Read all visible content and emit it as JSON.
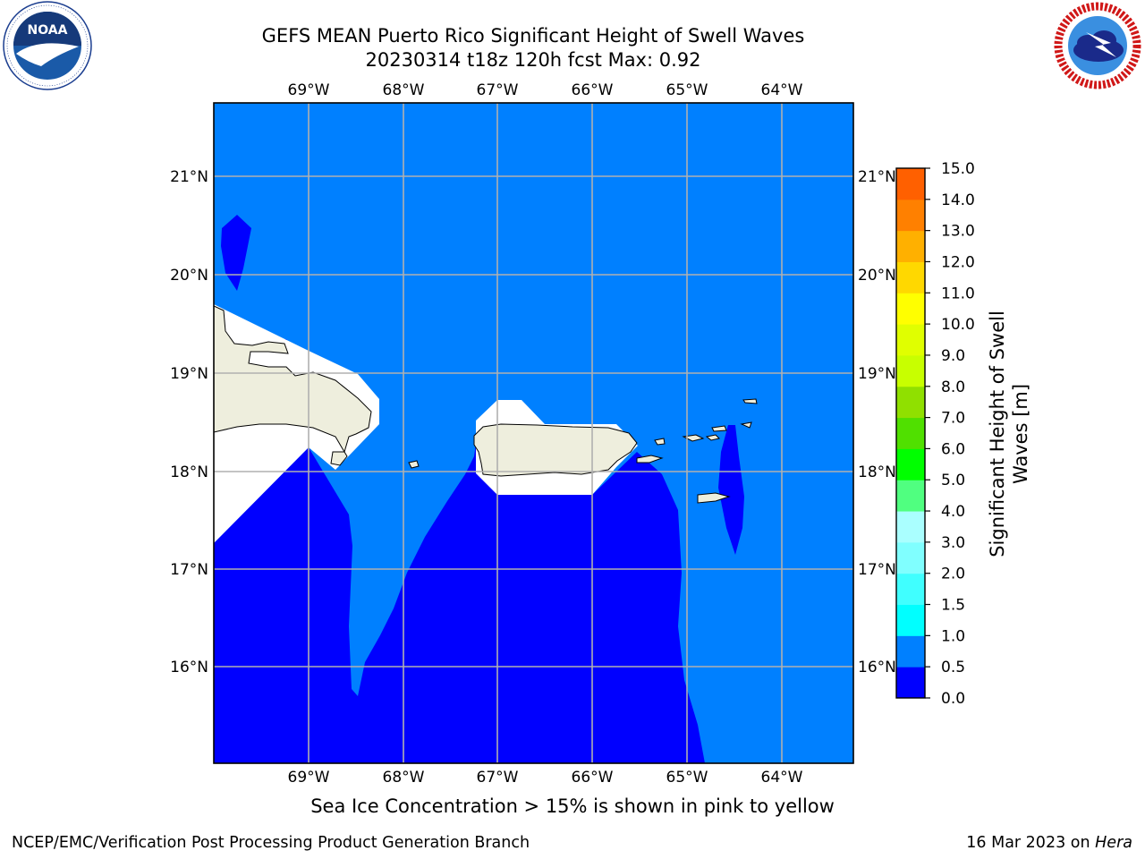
{
  "title": {
    "line1": "GEFS MEAN Puerto Rico Significant Height of Swell Waves",
    "line2": "20230314 t18z 120h fcst   Max: 0.92"
  },
  "logos": {
    "left": {
      "icon": "noaa-logo-icon",
      "text": "NOAA",
      "ring_text": "NATIONAL OCEANIC AND ATMOSPHERIC ADMINISTRATION · U.S. DEPARTMENT OF COMMERCE"
    },
    "right": {
      "icon": "nws-logo-icon",
      "ring_text": "NATIONAL WEATHER SERVICE"
    }
  },
  "map": {
    "longitude_labels": [
      "69°W",
      "68°W",
      "67°W",
      "66°W",
      "65°W",
      "64°W"
    ],
    "latitude_labels": [
      "21°N",
      "20°N",
      "19°N",
      "18°N",
      "17°N",
      "16°N"
    ],
    "colors": {
      "ocean_0_5": "#0000ff",
      "ocean_0_5_1_0": "#0080ff",
      "land": "#eeeedd",
      "masked": "#ffffff",
      "grid": "#b0b0b0"
    }
  },
  "colorbar": {
    "title_line1": "Significant Height of Swell",
    "title_line2": "Waves [m]",
    "tick_labels": [
      "0.0",
      "0.5",
      "1.0",
      "1.5",
      "2.0",
      "3.0",
      "4.0",
      "5.0",
      "6.0",
      "7.0",
      "8.0",
      "9.0",
      "10.0",
      "11.0",
      "12.0",
      "13.0",
      "14.0",
      "15.0"
    ],
    "colors": [
      "#0000ff",
      "#0080ff",
      "#00ffff",
      "#40ffff",
      "#80ffff",
      "#aaffff",
      "#50ff80",
      "#00ff00",
      "#50e000",
      "#90e000",
      "#c8ff00",
      "#e0ff00",
      "#ffff00",
      "#ffd800",
      "#ffb000",
      "#ff8000",
      "#ff6000",
      "#ff2000",
      "#ff0000"
    ]
  },
  "ice_note": "Sea Ice Concentration > 15% is shown in pink to yellow",
  "footer": {
    "credit": "NCEP/EMC/Verification Post Processing Product Generation Branch",
    "date_prefix": "16 Mar 2023 on ",
    "machine": "Hera"
  }
}
